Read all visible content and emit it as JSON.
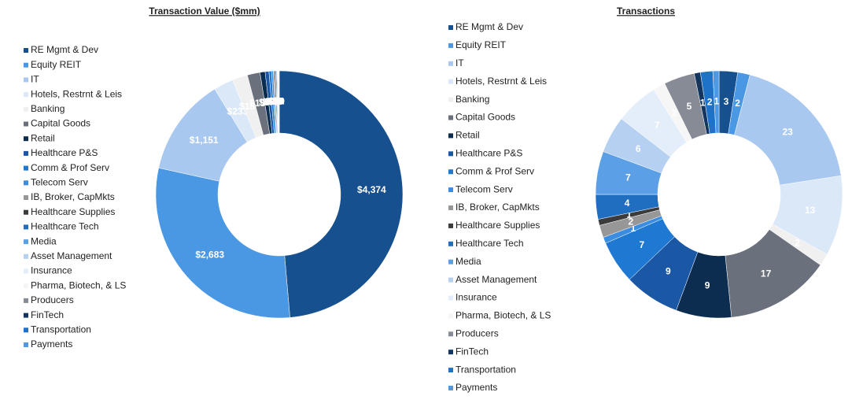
{
  "chart_data": [
    {
      "type": "donut",
      "title": "Transaction Value ($mm)",
      "categories": [
        "RE Mgmt & Dev",
        "Equity REIT",
        "IT",
        "Hotels, Restrnt & Leis",
        "Banking",
        "Capital Goods",
        "Retail",
        "Healthcare P&S",
        "Comm & Prof Serv",
        "Telecom Serv",
        "IB, Broker, CapMkts",
        "Healthcare Supplies",
        "Healthcare Tech",
        "Media",
        "Asset Management",
        "Insurance",
        "Pharma, Biotech, & LS",
        "Producers",
        "FinTech",
        "Transportation",
        "Payments"
      ],
      "values": [
        4374,
        2683,
        1151,
        233,
        180,
        150,
        60,
        45,
        30,
        20,
        15,
        12,
        10,
        8,
        6,
        5,
        4,
        3,
        3,
        2,
        2
      ],
      "value_labels": [
        "$4,374",
        "$2,683",
        "$1,151",
        "$233",
        "$180",
        "$150",
        "$60",
        "$45",
        "$30",
        "$20",
        "$15",
        "$12",
        "$10",
        "$8",
        "$6",
        "$5",
        "$4",
        "$3",
        "$3",
        "$2",
        "$2"
      ],
      "colors": [
        "#17508f",
        "#4a98e4",
        "#a8c8f0",
        "#dbe8f8",
        "#f0f0f0",
        "#6a717c",
        "#0c2c50",
        "#1a58a6",
        "#1f78d1",
        "#3a8de0",
        "#979797",
        "#3b3b3b",
        "#1f6ebf",
        "#5ba0e6",
        "#b5d0f0",
        "#e4eefa",
        "#f6f6f6",
        "#868b95",
        "#12365f",
        "#1e72c8",
        "#4d9ae3"
      ]
    },
    {
      "type": "donut",
      "title": "Transactions",
      "categories": [
        "RE Mgmt & Dev",
        "Equity REIT",
        "IT",
        "Hotels, Restrnt & Leis",
        "Banking",
        "Capital Goods",
        "Retail",
        "Healthcare P&S",
        "Comm & Prof Serv",
        "Telecom Serv",
        "IB, Broker, CapMkts",
        "Healthcare Supplies",
        "Healthcare Tech",
        "Media",
        "Asset Management",
        "Insurance",
        "Pharma, Biotech, & LS",
        "Producers",
        "FinTech",
        "Transportation",
        "Payments"
      ],
      "values": [
        3,
        2,
        23,
        13,
        2,
        17,
        9,
        9,
        7,
        1,
        2,
        1,
        4,
        7,
        6,
        7,
        2,
        5,
        1,
        2,
        1
      ],
      "colors": [
        "#17508f",
        "#4a98e4",
        "#a8c8f0",
        "#dbe8f8",
        "#f0f0f0",
        "#6a717c",
        "#0c2c50",
        "#1a58a6",
        "#1f78d1",
        "#3a8de0",
        "#979797",
        "#3b3b3b",
        "#1f6ebf",
        "#5ba0e6",
        "#b5d0f0",
        "#e4eefa",
        "#f6f6f6",
        "#868b95",
        "#12365f",
        "#1e72c8",
        "#4d9ae3"
      ]
    }
  ]
}
